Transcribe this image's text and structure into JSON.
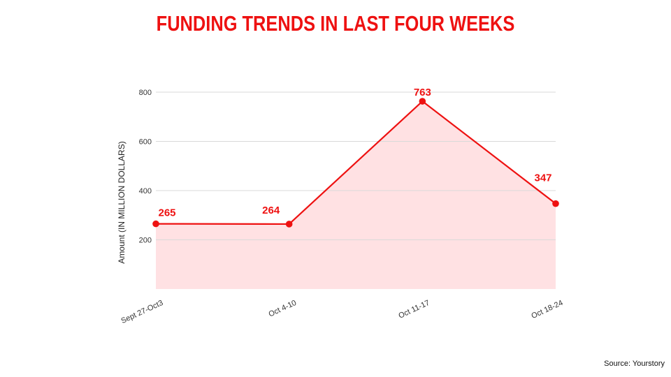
{
  "chart_data": {
    "type": "area",
    "title": "FUNDING TRENDS IN LAST FOUR WEEKS",
    "xlabel": "",
    "ylabel": "Amount (IN MILLION DOLLARS)",
    "categories": [
      "Sept 27-Oct3",
      "Oct 4-10",
      "Oct 11-17",
      "Oct 18-24"
    ],
    "series": [
      {
        "values": [
          265,
          264,
          763,
          347
        ]
      }
    ],
    "data_labels": [
      "265",
      "264",
      "763",
      "347"
    ],
    "ylim": [
      0,
      800
    ],
    "yticks": [
      200,
      400,
      600,
      800
    ],
    "grid": true,
    "legend": "none",
    "colors": {
      "title": "#ee1111",
      "line": "#ee1111",
      "fill": "#ffe1e3",
      "grid": "#d9d9d9",
      "label": "#ee1111"
    }
  },
  "source": "Source: Yourstory"
}
